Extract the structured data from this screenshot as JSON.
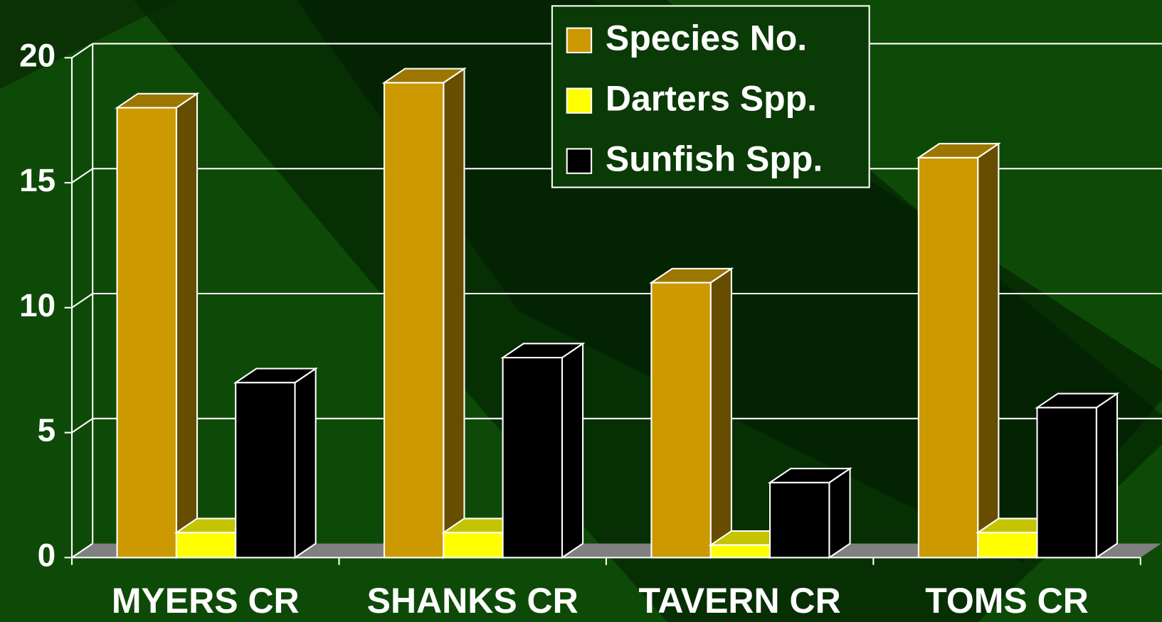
{
  "chart_data": {
    "type": "bar3d",
    "categories": [
      "MYERS CR",
      "SHANKS CR",
      "TAVERN CR",
      "TOMS CR"
    ],
    "series": [
      {
        "name": "Species No.",
        "color": "#cc9900",
        "values": [
          18,
          19,
          11,
          16
        ]
      },
      {
        "name": "Darters Spp.",
        "color": "#ffff00",
        "values": [
          1,
          1,
          0.5,
          1
        ]
      },
      {
        "name": "Sunfish Spp.",
        "color": "#000000",
        "values": [
          7,
          8,
          3,
          6
        ]
      }
    ],
    "ylim": [
      0,
      20
    ],
    "yticks": [
      0,
      5,
      10,
      15,
      20
    ],
    "grid": true,
    "legend": "top-right"
  }
}
